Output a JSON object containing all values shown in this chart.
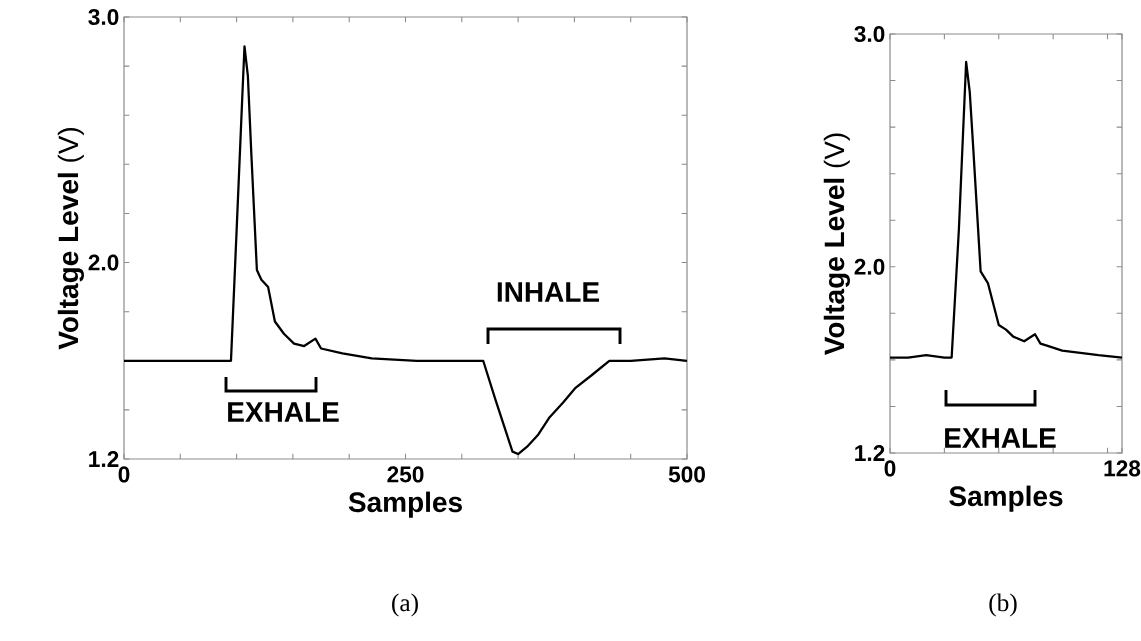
{
  "chart_data": [
    {
      "type": "line",
      "xlabel": "Samples",
      "ylabel": "**Voltage Level** (V)",
      "x": [
        0,
        30,
        60,
        90,
        95,
        100,
        105,
        107,
        110,
        113,
        118,
        122,
        128,
        134,
        142,
        151,
        160,
        170,
        175,
        194,
        220,
        260,
        300,
        319,
        330,
        340,
        345,
        350,
        358,
        368,
        378,
        390,
        401,
        415,
        431,
        450,
        480,
        500
      ],
      "series": [
        {
          "color": "#000000",
          "values": [
            1.6,
            1.6,
            1.6,
            1.6,
            1.6,
            2.13,
            2.67,
            2.88,
            2.76,
            2.45,
            1.97,
            1.93,
            1.9,
            1.76,
            1.71,
            1.67,
            1.66,
            1.69,
            1.65,
            1.63,
            1.61,
            1.6,
            1.6,
            1.6,
            1.44,
            1.3,
            1.23,
            1.22,
            1.25,
            1.3,
            1.37,
            1.43,
            1.49,
            1.54,
            1.6,
            1.6,
            1.61,
            1.6
          ]
        }
      ],
      "xlim": [
        0,
        500
      ],
      "ylim": [
        1.2,
        3.0
      ],
      "xticks": [
        0,
        {
          "value": 50,
          "label": null
        },
        {
          "value": 100,
          "label": null
        },
        {
          "value": 150,
          "label": null
        },
        {
          "value": 200,
          "label": null
        },
        250,
        {
          "value": 300,
          "label": null
        },
        {
          "value": 350,
          "label": null
        },
        {
          "value": 400,
          "label": null
        },
        {
          "value": 450,
          "label": null
        },
        500
      ],
      "yticks": [
        1.2,
        {
          "value": 1.4,
          "label": null
        },
        {
          "value": 1.6,
          "label": null
        },
        {
          "value": 1.8,
          "label": null
        },
        {
          "value": 2.0,
          "label": "2.0"
        },
        {
          "value": 2.2,
          "label": null
        },
        {
          "value": 2.4,
          "label": null
        },
        {
          "value": 2.6,
          "label": null
        },
        {
          "value": 2.8,
          "label": null
        },
        {
          "value": 3.0,
          "label": "3.0"
        }
      ],
      "annotations": [
        "EXHALE",
        "INHALE",
        "(a)"
      ]
    },
    {
      "type": "line",
      "xlabel": "Samples",
      "ylabel": "**Voltage Level** (V)",
      "x": [
        0,
        10,
        20,
        30,
        34,
        38,
        42,
        44,
        46,
        50,
        54,
        60,
        64,
        68,
        74,
        80,
        83,
        87,
        95,
        105,
        115,
        128
      ],
      "series": [
        {
          "color": "#000000",
          "values": [
            1.61,
            1.61,
            1.62,
            1.61,
            1.61,
            2.16,
            2.88,
            2.75,
            2.5,
            1.98,
            1.93,
            1.75,
            1.73,
            1.7,
            1.68,
            1.71,
            1.67,
            1.66,
            1.64,
            1.63,
            1.62,
            1.61
          ]
        }
      ],
      "xlim": [
        0,
        128
      ],
      "ylim": [
        1.2,
        3.0
      ],
      "xticks": [
        0,
        {
          "value": 30,
          "label": null
        },
        {
          "value": 60,
          "label": null
        },
        {
          "value": 90,
          "label": null
        },
        {
          "value": 120,
          "label": null
        },
        128
      ],
      "yticks": [
        1.2,
        {
          "value": 1.4,
          "label": null
        },
        {
          "value": 1.6,
          "label": null
        },
        {
          "value": 1.8,
          "label": null
        },
        {
          "value": 2.0,
          "label": "2.0"
        },
        {
          "value": 2.2,
          "label": null
        },
        {
          "value": 2.4,
          "label": null
        },
        {
          "value": 2.6,
          "label": null
        },
        {
          "value": 2.8,
          "label": null
        },
        {
          "value": 3.0,
          "label": "3.0"
        }
      ],
      "annotations": [
        "EXHALE",
        "(b)"
      ]
    }
  ]
}
